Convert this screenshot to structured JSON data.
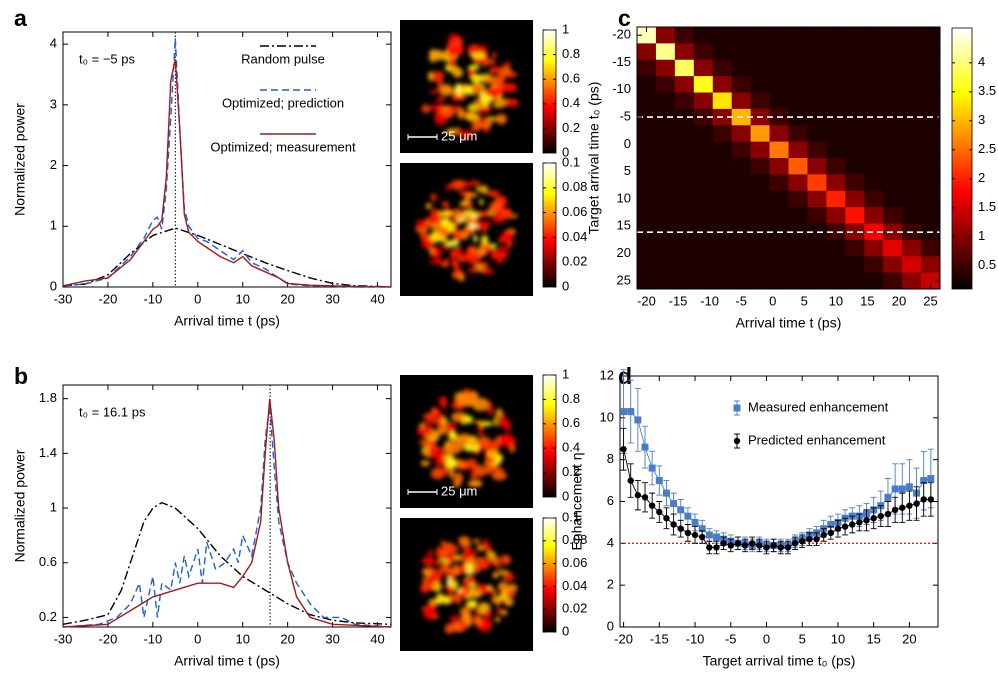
{
  "chart_data": [
    {
      "type": "line",
      "panel": "a",
      "annotation": "t₀ = −5 ps",
      "xlabel": "Arrival time t (ps)",
      "ylabel": "Normalized power",
      "xlim": [
        -30,
        43
      ],
      "ylim": [
        0,
        4.2
      ],
      "xticks": [
        -30,
        -20,
        -10,
        0,
        10,
        20,
        30,
        40
      ],
      "yticks": [
        0,
        1,
        2,
        3,
        4
      ],
      "vline": -5,
      "series": [
        {
          "name": "Random pulse",
          "color": "#000000",
          "style": "dashdot",
          "x": [
            -30,
            -25,
            -20,
            -15,
            -10,
            -5,
            0,
            5,
            10,
            15,
            20,
            25,
            30,
            35,
            40,
            43
          ],
          "values": [
            0.02,
            0.05,
            0.2,
            0.55,
            0.85,
            0.97,
            0.85,
            0.7,
            0.55,
            0.4,
            0.27,
            0.15,
            0.06,
            0.02,
            0.01,
            0
          ]
        },
        {
          "name": "Optimized; prediction",
          "color": "#1f5fcf",
          "style": "dashed",
          "x": [
            -30,
            -25,
            -20,
            -15,
            -12,
            -10,
            -9,
            -8,
            -7,
            -6,
            -5,
            -4,
            -3,
            -2,
            0,
            2,
            5,
            8,
            10,
            12,
            15,
            18,
            20,
            25,
            30,
            35,
            43
          ],
          "values": [
            0.02,
            0.05,
            0.15,
            0.5,
            0.8,
            1.1,
            1.15,
            0.95,
            1.6,
            2.8,
            4.1,
            2.6,
            1.3,
            1.0,
            0.8,
            0.75,
            0.6,
            0.45,
            0.6,
            0.4,
            0.3,
            0.15,
            0.05,
            0.02,
            0.01,
            0,
            0
          ]
        },
        {
          "name": "Optimized; measurement",
          "color": "#a01c1c",
          "style": "solid",
          "x": [
            -30,
            -25,
            -20,
            -15,
            -12,
            -10,
            -9,
            -8,
            -7,
            -6,
            -5,
            -4,
            -3,
            -2,
            0,
            2,
            5,
            8,
            10,
            12,
            15,
            18,
            20,
            25,
            30,
            35,
            43
          ],
          "values": [
            0.02,
            0.1,
            0.15,
            0.45,
            0.75,
            0.95,
            1.0,
            1.1,
            1.8,
            3.4,
            3.75,
            2.6,
            1.2,
            0.9,
            0.75,
            0.65,
            0.5,
            0.4,
            0.5,
            0.35,
            0.25,
            0.15,
            0.06,
            0.03,
            0.02,
            0.01,
            0
          ]
        }
      ]
    },
    {
      "type": "image",
      "scalebar": "25 μm",
      "colorbars": [
        {
          "clim": [
            0,
            1
          ],
          "ticks": [
            0,
            0.2,
            0.4,
            0.6,
            0.8,
            1
          ]
        },
        {
          "clim": [
            0,
            0.1
          ],
          "ticks": [
            0,
            0.02,
            0.04,
            0.06,
            0.08,
            0.1
          ]
        }
      ]
    },
    {
      "type": "line",
      "panel": "b",
      "annotation": "t₀ = 16.1 ps",
      "xlabel": "Arrival time t (ps)",
      "ylabel": "Normalized power",
      "xlim": [
        -30,
        43
      ],
      "ylim": [
        0.13,
        1.9
      ],
      "xticks": [
        -30,
        -20,
        -10,
        0,
        10,
        20,
        30,
        40
      ],
      "yticks": [
        0.2,
        0.6,
        1,
        1.4,
        1.8
      ],
      "vline": 16.1,
      "series": [
        {
          "color": "#000000",
          "style": "dashdot",
          "x": [
            -30,
            -25,
            -20,
            -17,
            -15,
            -12,
            -10,
            -8,
            -5,
            0,
            5,
            10,
            15,
            20,
            25,
            30,
            35,
            43
          ],
          "values": [
            0.15,
            0.18,
            0.22,
            0.4,
            0.6,
            0.9,
            1.0,
            1.04,
            1.0,
            0.85,
            0.65,
            0.5,
            0.4,
            0.3,
            0.22,
            0.18,
            0.16,
            0.15
          ]
        },
        {
          "color": "#1f5fcf",
          "style": "dashed",
          "x": [
            -30,
            -22,
            -18,
            -15,
            -13,
            -12,
            -10,
            -9,
            -8,
            -6,
            -5,
            -4,
            -3,
            -2,
            0,
            1,
            2,
            4,
            6,
            8,
            9,
            10,
            12,
            14,
            15,
            16,
            17,
            18,
            20,
            22,
            25,
            28,
            32,
            35,
            43
          ],
          "values": [
            0.13,
            0.15,
            0.2,
            0.3,
            0.45,
            0.2,
            0.5,
            0.2,
            0.45,
            0.4,
            0.6,
            0.45,
            0.65,
            0.5,
            0.7,
            0.45,
            0.75,
            0.55,
            0.6,
            0.7,
            0.6,
            0.8,
            0.65,
            1.0,
            1.5,
            1.75,
            1.3,
            0.9,
            0.6,
            0.45,
            0.3,
            0.2,
            0.2,
            0.15,
            0.13
          ]
        },
        {
          "color": "#a01c1c",
          "style": "solid",
          "x": [
            -30,
            -20,
            -15,
            -10,
            -5,
            0,
            5,
            8,
            10,
            12,
            14,
            15,
            16,
            17,
            18,
            20,
            22,
            25,
            30,
            43
          ],
          "values": [
            0.13,
            0.15,
            0.25,
            0.35,
            0.4,
            0.45,
            0.45,
            0.42,
            0.5,
            0.6,
            0.9,
            1.4,
            1.8,
            1.5,
            1.0,
            0.6,
            0.35,
            0.2,
            0.15,
            0.13
          ]
        }
      ]
    },
    {
      "type": "image",
      "scalebar": "25 μm",
      "colorbars": [
        {
          "clim": [
            0,
            1
          ],
          "ticks": [
            0,
            0.2,
            0.4,
            0.6,
            0.8,
            1
          ]
        },
        {
          "clim": [
            0,
            0.1
          ],
          "ticks": [
            0,
            0.02,
            0.04,
            0.06,
            0.08,
            0.1
          ]
        }
      ]
    },
    {
      "type": "heatmap",
      "panel": "c",
      "xlabel": "Arrival time t (ps)",
      "ylabel": "Target arrival time t₀ (ps)",
      "xlim": [
        -21.5,
        26.5
      ],
      "ylim": [
        -21.5,
        26.5
      ],
      "y_inverted": true,
      "xticks": [
        -20,
        -15,
        -10,
        -5,
        0,
        5,
        10,
        15,
        20,
        25
      ],
      "yticks": [
        -20,
        -15,
        -10,
        -5,
        0,
        5,
        10,
        15,
        20,
        25
      ],
      "hlines": [
        -5,
        16.1
      ],
      "x": [
        -20,
        -17,
        -14,
        -11,
        -8,
        -5,
        -2,
        1,
        4,
        7,
        10,
        13,
        16,
        19,
        22,
        25
      ],
      "y": [
        -20,
        -17,
        -14,
        -11,
        -8,
        -5,
        -2,
        1,
        4,
        7,
        10,
        13,
        16,
        19,
        22,
        25
      ],
      "values": [
        [
          4.3,
          1.0,
          0.5,
          0.3,
          0.3,
          0.3,
          0.3,
          0.3,
          0.3,
          0.3,
          0.3,
          0.3,
          0.3,
          0.3,
          0.3,
          0.3
        ],
        [
          1.0,
          4.1,
          1.0,
          0.5,
          0.3,
          0.3,
          0.3,
          0.3,
          0.3,
          0.3,
          0.3,
          0.3,
          0.3,
          0.3,
          0.3,
          0.3
        ],
        [
          0.5,
          1.0,
          3.9,
          1.0,
          0.5,
          0.3,
          0.3,
          0.3,
          0.3,
          0.3,
          0.3,
          0.3,
          0.3,
          0.3,
          0.3,
          0.3
        ],
        [
          0.3,
          0.5,
          1.0,
          3.6,
          1.0,
          0.5,
          0.3,
          0.3,
          0.3,
          0.3,
          0.3,
          0.3,
          0.3,
          0.3,
          0.3,
          0.3
        ],
        [
          0.3,
          0.3,
          0.5,
          1.0,
          3.3,
          1.0,
          0.5,
          0.3,
          0.3,
          0.3,
          0.3,
          0.3,
          0.3,
          0.3,
          0.3,
          0.3
        ],
        [
          0.3,
          0.3,
          0.3,
          0.5,
          1.0,
          3.0,
          1.0,
          0.5,
          0.3,
          0.3,
          0.3,
          0.3,
          0.3,
          0.3,
          0.3,
          0.3
        ],
        [
          0.3,
          0.3,
          0.3,
          0.3,
          0.5,
          1.0,
          2.8,
          1.0,
          0.5,
          0.3,
          0.3,
          0.3,
          0.3,
          0.3,
          0.3,
          0.3
        ],
        [
          0.3,
          0.3,
          0.3,
          0.3,
          0.3,
          0.5,
          1.0,
          2.6,
          1.0,
          0.5,
          0.3,
          0.3,
          0.3,
          0.3,
          0.3,
          0.3
        ],
        [
          0.3,
          0.3,
          0.3,
          0.3,
          0.3,
          0.3,
          0.5,
          1.0,
          2.4,
          1.0,
          0.5,
          0.3,
          0.3,
          0.3,
          0.3,
          0.3
        ],
        [
          0.3,
          0.3,
          0.3,
          0.3,
          0.3,
          0.3,
          0.3,
          0.5,
          1.0,
          2.2,
          1.0,
          0.5,
          0.3,
          0.3,
          0.3,
          0.3
        ],
        [
          0.3,
          0.3,
          0.3,
          0.3,
          0.3,
          0.3,
          0.3,
          0.3,
          0.5,
          1.0,
          2.0,
          1.0,
          0.5,
          0.3,
          0.3,
          0.3
        ],
        [
          0.3,
          0.3,
          0.3,
          0.3,
          0.3,
          0.3,
          0.3,
          0.3,
          0.3,
          0.5,
          1.0,
          1.9,
          1.0,
          0.5,
          0.3,
          0.3
        ],
        [
          0.3,
          0.3,
          0.3,
          0.3,
          0.3,
          0.3,
          0.3,
          0.3,
          0.3,
          0.3,
          0.5,
          1.0,
          1.7,
          1.0,
          0.5,
          0.3
        ],
        [
          0.3,
          0.3,
          0.3,
          0.3,
          0.3,
          0.3,
          0.3,
          0.3,
          0.3,
          0.3,
          0.3,
          0.5,
          1.0,
          1.6,
          1.0,
          0.5
        ],
        [
          0.3,
          0.3,
          0.3,
          0.3,
          0.3,
          0.3,
          0.3,
          0.3,
          0.3,
          0.3,
          0.3,
          0.3,
          0.5,
          1.0,
          1.5,
          1.0
        ],
        [
          0.3,
          0.3,
          0.3,
          0.3,
          0.3,
          0.3,
          0.3,
          0.3,
          0.3,
          0.3,
          0.3,
          0.3,
          0.3,
          0.5,
          1.0,
          1.4
        ]
      ],
      "colorbar": {
        "clim": [
          0.1,
          4.6
        ],
        "ticks": [
          0.5,
          1,
          1.5,
          2,
          2.5,
          3,
          3.5,
          4
        ]
      }
    },
    {
      "type": "errorbar",
      "panel": "d",
      "xlabel": "Target arrival time t₀ (ps)",
      "ylabel": "Enhancement η",
      "xlim": [
        -20.5,
        24
      ],
      "ylim": [
        0,
        12
      ],
      "xticks": [
        -20,
        -15,
        -10,
        -5,
        0,
        5,
        10,
        15,
        20
      ],
      "yticks": [
        0,
        2,
        4,
        6,
        8,
        10,
        12
      ],
      "hline": 4,
      "hline_color": "#e8191b",
      "x": [
        -20,
        -19,
        -18,
        -17,
        -16,
        -15,
        -14,
        -13,
        -12,
        -11,
        -10,
        -9,
        -8,
        -7,
        -6,
        -5,
        -4,
        -3,
        -2,
        -1,
        0,
        1,
        2,
        3,
        4,
        5,
        6,
        7,
        8,
        9,
        10,
        11,
        12,
        13,
        14,
        15,
        16,
        17,
        18,
        19,
        20,
        21,
        22,
        23
      ],
      "series": [
        {
          "name": "Measured enhancement",
          "color": "#4a7cc9",
          "marker": "square",
          "values": [
            10.3,
            10.3,
            9.9,
            8.6,
            7.6,
            7.0,
            6.4,
            5.9,
            5.6,
            5.3,
            5.0,
            4.7,
            4.4,
            4.3,
            4.2,
            4.1,
            4.0,
            4.0,
            3.9,
            4.0,
            3.9,
            3.9,
            3.9,
            3.9,
            4.1,
            4.2,
            4.4,
            4.5,
            4.7,
            4.9,
            5.0,
            5.2,
            5.3,
            5.3,
            5.4,
            5.6,
            5.8,
            6.2,
            6.6,
            6.6,
            6.7,
            6.4,
            7.0,
            7.1
          ],
          "errors": [
            2.0,
            1.5,
            1.5,
            1.0,
            0.8,
            0.7,
            0.6,
            0.5,
            0.5,
            0.4,
            0.4,
            0.4,
            0.3,
            0.3,
            0.3,
            0.3,
            0.3,
            0.3,
            0.3,
            0.3,
            0.3,
            0.3,
            0.3,
            0.3,
            0.3,
            0.3,
            0.3,
            0.3,
            0.4,
            0.4,
            0.4,
            0.4,
            0.4,
            0.5,
            0.5,
            0.6,
            0.7,
            0.9,
            1.2,
            1.2,
            1.3,
            1.2,
            1.4,
            1.4
          ]
        },
        {
          "name": "Predicted enhancement",
          "color": "#000000",
          "marker": "circle",
          "values": [
            8.5,
            7.0,
            6.3,
            6.2,
            5.8,
            5.5,
            5.2,
            4.9,
            4.7,
            4.5,
            4.4,
            4.3,
            3.8,
            3.8,
            4.0,
            3.9,
            4.0,
            3.9,
            4.0,
            3.9,
            3.8,
            3.9,
            3.8,
            3.8,
            4.0,
            4.1,
            4.2,
            4.2,
            4.4,
            4.5,
            4.7,
            4.8,
            4.9,
            5.0,
            5.1,
            5.2,
            5.3,
            5.4,
            5.6,
            5.7,
            5.8,
            5.9,
            6.1,
            6.1
          ],
          "errors": [
            1.0,
            0.8,
            0.7,
            0.7,
            0.6,
            0.5,
            0.5,
            0.5,
            0.4,
            0.4,
            0.4,
            0.3,
            0.3,
            0.3,
            0.3,
            0.3,
            0.3,
            0.3,
            0.3,
            0.3,
            0.3,
            0.3,
            0.3,
            0.3,
            0.3,
            0.3,
            0.3,
            0.3,
            0.3,
            0.3,
            0.4,
            0.4,
            0.4,
            0.4,
            0.5,
            0.5,
            0.5,
            0.6,
            0.6,
            0.7,
            0.7,
            0.8,
            0.8,
            0.8
          ]
        }
      ]
    }
  ]
}
